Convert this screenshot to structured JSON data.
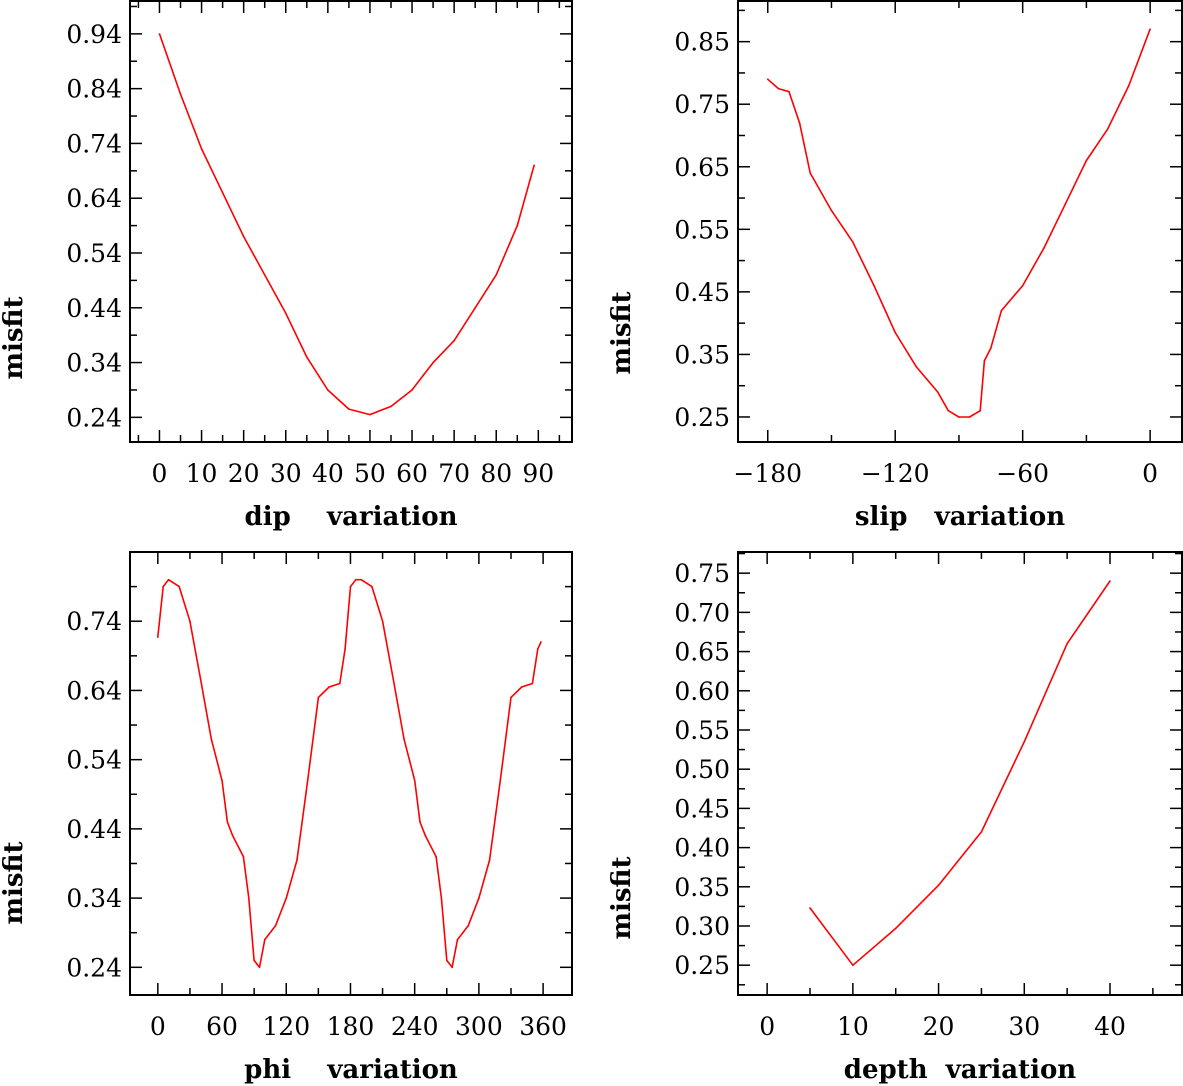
{
  "chart_data": [
    {
      "type": "line",
      "xlabel": "dip    variation",
      "ylabel": "misfit",
      "xticks": [
        0,
        10,
        20,
        30,
        40,
        50,
        60,
        70,
        80,
        90
      ],
      "yticks": [
        0.24,
        0.34,
        0.44,
        0.54,
        0.64,
        0.74,
        0.84,
        0.94
      ],
      "xlim": [
        -7,
        98
      ],
      "ylim": [
        0.195,
        1.0
      ],
      "color": "#ff0000",
      "x": [
        0,
        5,
        10,
        15,
        20,
        25,
        30,
        35,
        40,
        45,
        50,
        55,
        60,
        65,
        70,
        75,
        80,
        85,
        89
      ],
      "y": [
        0.94,
        0.83,
        0.73,
        0.65,
        0.57,
        0.5,
        0.43,
        0.35,
        0.29,
        0.255,
        0.245,
        0.26,
        0.29,
        0.34,
        0.38,
        0.44,
        0.5,
        0.59,
        0.7
      ]
    },
    {
      "type": "line",
      "xlabel": "slip   variation",
      "ylabel": "misfit",
      "xticks": [
        -180,
        -120,
        -60,
        0
      ],
      "yticks": [
        0.25,
        0.35,
        0.45,
        0.55,
        0.65,
        0.75,
        0.85
      ],
      "xlim": [
        -194,
        15
      ],
      "ylim": [
        0.21,
        0.915
      ],
      "color": "#ff0000",
      "x": [
        -180,
        -175,
        -170,
        -165,
        -160,
        -150,
        -140,
        -130,
        -120,
        -110,
        -100,
        -95,
        -90,
        -85,
        -80,
        -78,
        -75,
        -70,
        -60,
        -50,
        -40,
        -30,
        -20,
        -10,
        0
      ],
      "y": [
        0.79,
        0.775,
        0.77,
        0.72,
        0.64,
        0.58,
        0.53,
        0.46,
        0.385,
        0.33,
        0.29,
        0.26,
        0.25,
        0.25,
        0.26,
        0.34,
        0.36,
        0.42,
        0.46,
        0.52,
        0.59,
        0.66,
        0.71,
        0.78,
        0.87
      ]
    },
    {
      "type": "line",
      "xlabel": "phi    variation",
      "ylabel": "misfit",
      "xticks": [
        0,
        60,
        120,
        180,
        240,
        300,
        360
      ],
      "yticks": [
        0.24,
        0.34,
        0.44,
        0.54,
        0.64,
        0.74
      ],
      "xlim": [
        -26,
        387
      ],
      "ylim": [
        0.2,
        0.84
      ],
      "color": "#ff0000",
      "x": [
        0,
        5,
        10,
        20,
        30,
        40,
        50,
        60,
        65,
        70,
        80,
        85,
        90,
        95,
        100,
        110,
        120,
        130,
        140,
        150,
        160,
        170,
        175,
        180,
        185,
        190,
        200,
        210,
        220,
        230,
        240,
        245,
        250,
        260,
        265,
        270,
        275,
        280,
        290,
        300,
        310,
        320,
        330,
        340,
        350,
        355,
        358
      ],
      "y": [
        0.717,
        0.79,
        0.8,
        0.79,
        0.74,
        0.656,
        0.57,
        0.51,
        0.45,
        0.43,
        0.4,
        0.34,
        0.25,
        0.24,
        0.28,
        0.3,
        0.34,
        0.395,
        0.51,
        0.63,
        0.645,
        0.65,
        0.7,
        0.79,
        0.8,
        0.8,
        0.79,
        0.74,
        0.656,
        0.57,
        0.51,
        0.45,
        0.43,
        0.4,
        0.34,
        0.25,
        0.24,
        0.28,
        0.3,
        0.34,
        0.395,
        0.51,
        0.63,
        0.645,
        0.65,
        0.7,
        0.71
      ]
    },
    {
      "type": "line",
      "xlabel": "depth  variation",
      "ylabel": "misfit",
      "xticks": [
        0,
        10,
        20,
        30,
        40
      ],
      "yticks": [
        0.25,
        0.3,
        0.35,
        0.4,
        0.45,
        0.5,
        0.55,
        0.6,
        0.65,
        0.7,
        0.75
      ],
      "xlim": [
        -3.4,
        48.4
      ],
      "ylim": [
        0.212,
        0.777
      ],
      "color": "#ff0000",
      "x": [
        5,
        10,
        15,
        20,
        25,
        30,
        35,
        40
      ],
      "y": [
        0.323,
        0.25,
        0.297,
        0.352,
        0.42,
        0.535,
        0.66,
        0.74
      ]
    }
  ]
}
